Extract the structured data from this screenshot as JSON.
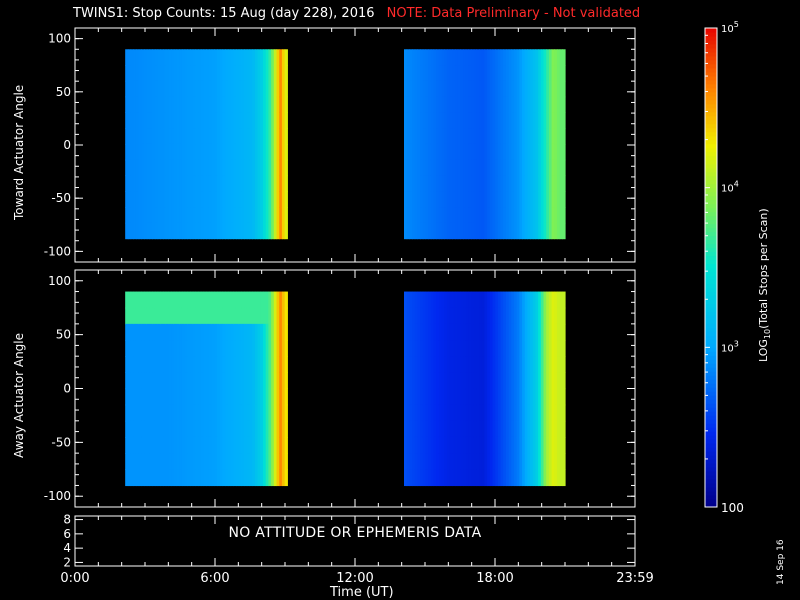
{
  "header": {
    "title": "TWINS1: Stop Counts: 15 Aug (day 228), 2016",
    "note": "NOTE: Data Preliminary - Not validated"
  },
  "panels": {
    "toward_label": "Toward Actuator Angle",
    "away_label": "Away Actuator Angle",
    "no_data_text": "NO ATTITUDE OR EPHEMERIS DATA"
  },
  "colorbar": {
    "label": "LOG10(Total Stops per Scan)",
    "ticks": [
      "100",
      "10^3",
      "10^4",
      "10^5"
    ],
    "range": [
      100,
      100000
    ],
    "scale": "log"
  },
  "footer": {
    "xlabel": "Time (UT)",
    "date_stamp": "14 Sep 16"
  },
  "colors": {
    "background": "#000000",
    "axes": "#ffffff",
    "note": "#ff2a2a"
  },
  "chart_data": [
    {
      "type": "heatmap",
      "title": "TWINS1: Stop Counts: 15 Aug (day 228), 2016",
      "ylabel": "Toward Actuator Angle",
      "xlabel": "Time (UT)",
      "xlim": [
        0,
        24
      ],
      "ylim": [
        -110,
        110
      ],
      "x_ticks": [
        "0:00",
        "6:00",
        "12:00",
        "18:00",
        "23:59"
      ],
      "y_ticks": [
        -100,
        -50,
        0,
        50,
        100
      ],
      "data_intervals_hours": [
        [
          2.15,
          9.1
        ],
        [
          14.1,
          21.0
        ]
      ],
      "angle_range": [
        -88,
        90
      ],
      "profile_log10": {
        "time_h": [
          2.2,
          4.0,
          6.0,
          7.6,
          8.0,
          8.4,
          8.8,
          9.0,
          14.2,
          16.0,
          17.5,
          19.0,
          19.8,
          20.2,
          20.5,
          20.8
        ],
        "log10_counts": [
          2.85,
          2.9,
          2.95,
          3.1,
          3.3,
          3.7,
          4.6,
          4.2,
          2.85,
          2.7,
          2.65,
          2.9,
          3.2,
          3.6,
          3.9,
          3.8
        ]
      }
    },
    {
      "type": "heatmap",
      "ylabel": "Away Actuator Angle",
      "xlabel": "Time (UT)",
      "xlim": [
        0,
        24
      ],
      "ylim": [
        -110,
        110
      ],
      "x_ticks": [
        "0:00",
        "6:00",
        "12:00",
        "18:00",
        "23:59"
      ],
      "y_ticks": [
        -100,
        -50,
        0,
        50,
        100
      ],
      "data_intervals_hours": [
        [
          2.15,
          9.1
        ],
        [
          14.1,
          21.0
        ]
      ],
      "angle_range": [
        -90,
        90
      ],
      "band_feature": {
        "angle_deg": 75,
        "description": "enhanced counts near top"
      },
      "profile_log10": {
        "time_h": [
          2.2,
          4.0,
          6.0,
          7.6,
          8.0,
          8.4,
          8.8,
          9.0,
          14.2,
          16.0,
          17.5,
          19.0,
          19.8,
          20.2,
          20.5,
          20.8
        ],
        "log10_counts": [
          2.9,
          2.9,
          2.95,
          3.1,
          3.3,
          3.8,
          4.6,
          4.3,
          2.6,
          2.4,
          2.35,
          2.8,
          3.3,
          4.0,
          4.2,
          4.1
        ]
      }
    },
    {
      "type": "line",
      "ylim": [
        1.5,
        8.5
      ],
      "y_ticks": [
        2,
        4,
        6,
        8
      ],
      "x_ticks": [
        "0:00",
        "6:00",
        "12:00",
        "18:00",
        "23:59"
      ],
      "annotation": "NO ATTITUDE OR EPHEMERIS DATA"
    }
  ]
}
